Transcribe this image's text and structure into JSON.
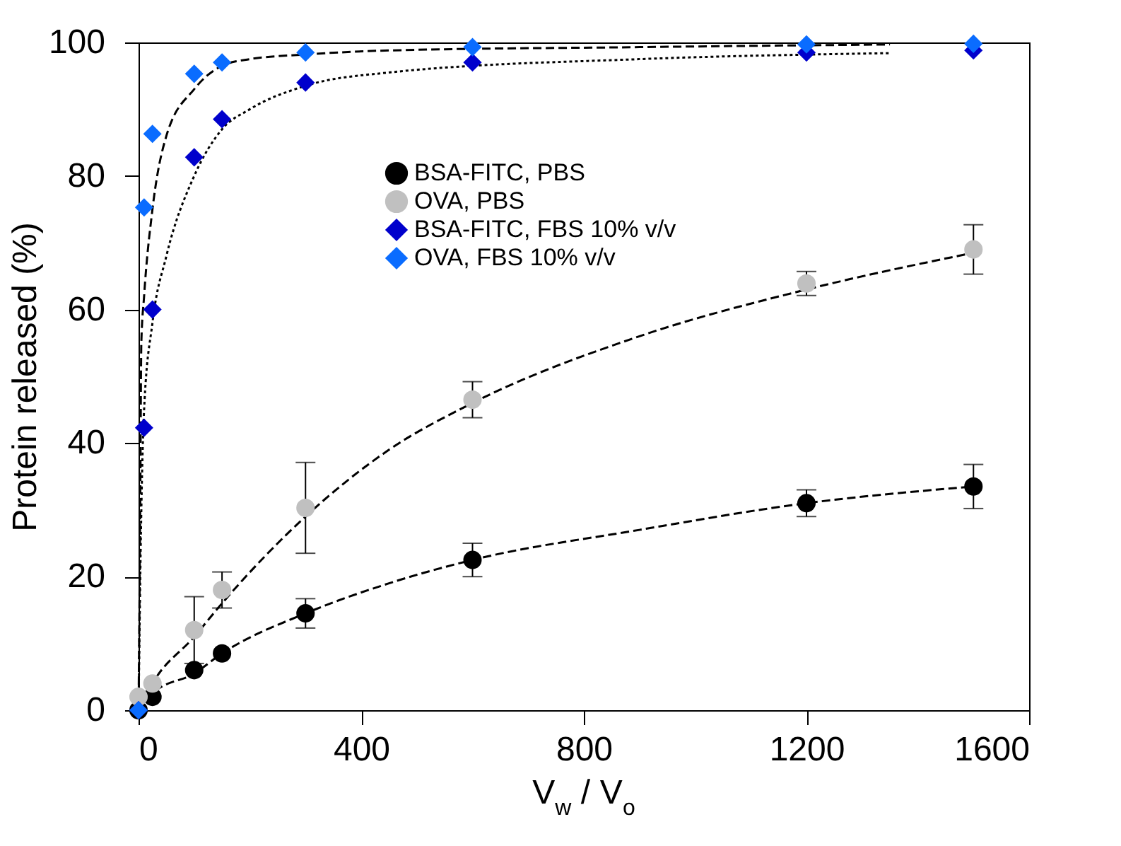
{
  "chart_data": {
    "type": "scatter",
    "xlabel": "V$_{w}$ / V$_{o}$",
    "ylabel": "Protein released (%)",
    "xlim": [
      0,
      1600
    ],
    "xticks": [
      0,
      400,
      800,
      1200,
      1600
    ],
    "ylim": [
      0,
      100
    ],
    "yticks": [
      0,
      20,
      40,
      60,
      80,
      100
    ],
    "grid": false,
    "legend": "top",
    "series": [
      {
        "type": "line",
        "marker": "none",
        "line_style": "dashed",
        "color": "#000000",
        "x": [
          0,
          25,
          100,
          150,
          300,
          450,
          600,
          900,
          1200,
          1500
        ],
        "values": [
          0,
          2.5,
          5.5,
          8.5,
          14.5,
          19,
          22.5,
          27,
          31,
          33.5
        ]
      },
      {
        "type": "line",
        "marker": "none",
        "line_style": "dashed",
        "color": "#000000",
        "x": [
          0,
          25,
          100,
          150,
          300,
          450,
          600,
          900,
          1200,
          1500
        ],
        "values": [
          0,
          4,
          11,
          16,
          29,
          39,
          46,
          56,
          63,
          68.5
        ]
      },
      {
        "type": "line",
        "marker": "none",
        "line_style": "dotted",
        "color": "#000000",
        "x": [
          0,
          5,
          10,
          25,
          50,
          100,
          150,
          200,
          300,
          450,
          900,
          1350
        ],
        "values": [
          0,
          30,
          45,
          58,
          68,
          80,
          87,
          90,
          93.5,
          95.5,
          97.5,
          98.4
        ]
      },
      {
        "type": "line",
        "marker": "none",
        "line_style": "dashed",
        "color": "#000000",
        "x": [
          0,
          3,
          5,
          10,
          25,
          50,
          100,
          150,
          200,
          300,
          450,
          900,
          1350
        ],
        "values": [
          0,
          30,
          55,
          62,
          75,
          86,
          93,
          96.5,
          97.5,
          98.2,
          98.8,
          99.3,
          99.7
        ]
      },
      {
        "name": "BSA-FITC, PBS",
        "marker": "circle",
        "color": "#000000",
        "x": [
          0,
          25,
          100,
          150,
          300,
          600,
          1200,
          1500
        ],
        "values": [
          0,
          2,
          6,
          8.5,
          14.5,
          22.5,
          31,
          33.5
        ],
        "errors": [
          null,
          null,
          null,
          null,
          2.2,
          2.5,
          2,
          3.3
        ]
      },
      {
        "name": "OVA, PBS",
        "marker": "circle",
        "color": "#c0c0c0",
        "x": [
          0,
          25,
          100,
          150,
          300,
          600,
          1200,
          1500
        ],
        "values": [
          2,
          4,
          12,
          18,
          30.3,
          46.5,
          63.9,
          69
        ],
        "errors": [
          null,
          null,
          5,
          2.7,
          6.8,
          2.7,
          1.8,
          3.7
        ]
      },
      {
        "name": "BSA-FITC, FBS 10% v/v",
        "marker": "diamond",
        "color": "#0000cc",
        "x": [
          0,
          10,
          25,
          100,
          150,
          300,
          600,
          1200,
          1500
        ],
        "values": [
          0,
          42.3,
          60,
          82.8,
          88.5,
          94,
          97,
          98.5,
          98.8
        ]
      },
      {
        "name": "OVA, FBS 10% v/v",
        "marker": "diamond",
        "color": "#0a6cff",
        "x": [
          0,
          10,
          25,
          100,
          150,
          300,
          600,
          1200,
          1500
        ],
        "values": [
          0,
          75.3,
          86.3,
          95.3,
          97,
          98.5,
          99.3,
          99.7,
          99.8
        ]
      }
    ]
  }
}
